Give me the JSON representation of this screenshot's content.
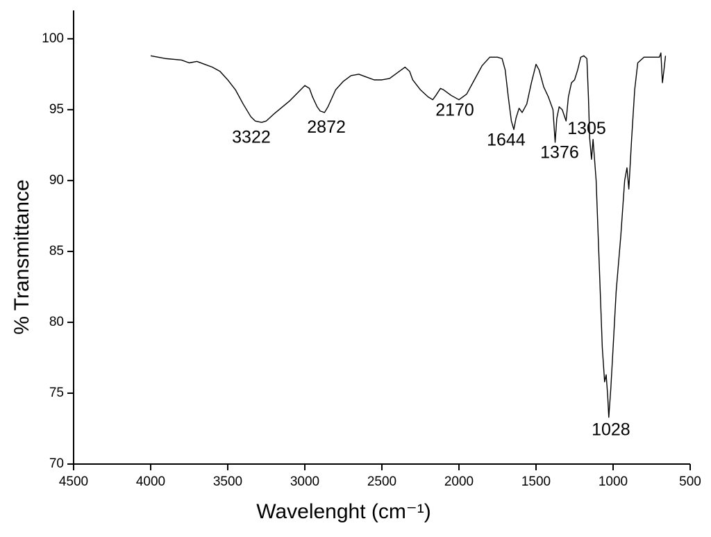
{
  "chart_data": {
    "type": "line",
    "xlabel": "Wavelenght (cm⁻¹)",
    "ylabel": "% Transmittance",
    "xlim": [
      4500,
      500
    ],
    "xticks": [
      4500,
      4000,
      3500,
      3000,
      2500,
      2000,
      1500,
      1000,
      500
    ],
    "ylim": [
      70,
      102
    ],
    "yticks": [
      70,
      75,
      80,
      85,
      90,
      95,
      100
    ],
    "series": [
      {
        "color": "#000000",
        "x": [
          4000,
          3900,
          3800,
          3750,
          3700,
          3650,
          3600,
          3550,
          3500,
          3450,
          3400,
          3350,
          3322,
          3280,
          3250,
          3200,
          3100,
          3000,
          2970,
          2950,
          2920,
          2900,
          2872,
          2850,
          2800,
          2750,
          2700,
          2650,
          2600,
          2550,
          2500,
          2450,
          2400,
          2350,
          2320,
          2300,
          2250,
          2200,
          2170,
          2150,
          2120,
          2100,
          2050,
          2000,
          1950,
          1900,
          1850,
          1800,
          1750,
          1720,
          1700,
          1680,
          1660,
          1644,
          1630,
          1610,
          1590,
          1560,
          1530,
          1500,
          1480,
          1450,
          1420,
          1400,
          1390,
          1376,
          1365,
          1350,
          1330,
          1305,
          1290,
          1270,
          1250,
          1230,
          1210,
          1190,
          1170,
          1160,
          1152,
          1140,
          1130,
          1110,
          1090,
          1070,
          1055,
          1045,
          1035,
          1028,
          1015,
          1000,
          980,
          950,
          925,
          910,
          898,
          880,
          860,
          840,
          800,
          750,
          700,
          690,
          680,
          670,
          660
        ],
        "values": [
          98.8,
          98.6,
          98.5,
          98.3,
          98.4,
          98.2,
          98.0,
          97.7,
          97.1,
          96.4,
          95.4,
          94.5,
          94.2,
          94.1,
          94.2,
          94.7,
          95.6,
          96.7,
          96.5,
          95.9,
          95.2,
          94.9,
          94.8,
          95.2,
          96.4,
          97.0,
          97.4,
          97.5,
          97.3,
          97.1,
          97.1,
          97.2,
          97.6,
          98.0,
          97.7,
          97.1,
          96.4,
          95.9,
          95.7,
          96.0,
          96.5,
          96.4,
          96.0,
          95.7,
          96.1,
          97.1,
          98.1,
          98.7,
          98.7,
          98.6,
          97.8,
          95.9,
          94.2,
          93.6,
          94.4,
          95.1,
          94.8,
          95.4,
          96.9,
          98.2,
          97.8,
          96.6,
          95.9,
          95.3,
          95.0,
          92.7,
          94.4,
          95.2,
          95.0,
          94.2,
          95.9,
          96.9,
          97.1,
          97.8,
          98.7,
          98.8,
          98.6,
          95.9,
          93.0,
          91.5,
          92.9,
          90.0,
          84.1,
          78.2,
          75.8,
          76.3,
          74.8,
          73.3,
          75.3,
          78.2,
          82.2,
          86.1,
          90.0,
          90.9,
          89.4,
          92.9,
          96.4,
          98.3,
          98.7,
          98.7,
          98.7,
          99.0,
          96.9,
          97.8,
          98.8
        ]
      }
    ],
    "annotations": [
      {
        "text": "3322",
        "x": 3347,
        "y": 93.0
      },
      {
        "text": "2872",
        "x": 2860,
        "y": 93.7
      },
      {
        "text": "2170",
        "x": 2027,
        "y": 94.9
      },
      {
        "text": "1644",
        "x": 1694,
        "y": 92.8
      },
      {
        "text": "1376",
        "x": 1347,
        "y": 91.9
      },
      {
        "text": "1305",
        "x": 1171,
        "y": 93.6
      },
      {
        "text": "1028",
        "x": 1014,
        "y": 72.35
      }
    ]
  }
}
